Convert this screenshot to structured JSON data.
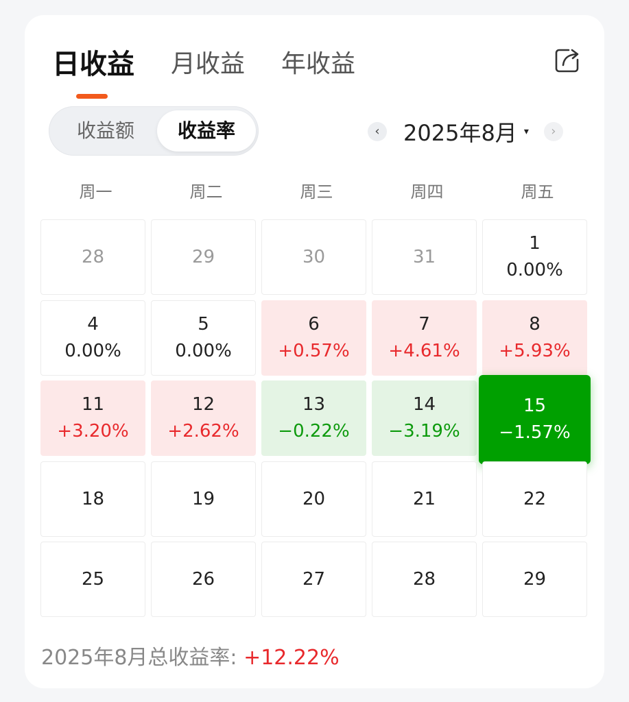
{
  "tabs": [
    {
      "label": "日收益",
      "active": true
    },
    {
      "label": "月收益",
      "active": false
    },
    {
      "label": "年收益",
      "active": false
    }
  ],
  "share_icon": "share-icon",
  "segment": {
    "amount_label": "收益额",
    "rate_label": "收益率",
    "selected": "收益率"
  },
  "month_nav": {
    "prev": "‹",
    "label": "2025年8月",
    "caret": "▾",
    "next": "›"
  },
  "weekdays": [
    "周一",
    "周二",
    "周三",
    "周四",
    "周五"
  ],
  "calendar": [
    [
      {
        "day": "28",
        "rate": "",
        "state": "muted"
      },
      {
        "day": "29",
        "rate": "",
        "state": "muted"
      },
      {
        "day": "30",
        "rate": "",
        "state": "muted"
      },
      {
        "day": "31",
        "rate": "",
        "state": "muted"
      },
      {
        "day": "1",
        "rate": "0.00%",
        "state": "flat"
      }
    ],
    [
      {
        "day": "4",
        "rate": "0.00%",
        "state": "flat"
      },
      {
        "day": "5",
        "rate": "0.00%",
        "state": "flat"
      },
      {
        "day": "6",
        "rate": "+0.57%",
        "state": "up"
      },
      {
        "day": "7",
        "rate": "+4.61%",
        "state": "up"
      },
      {
        "day": "8",
        "rate": "+5.93%",
        "state": "up"
      }
    ],
    [
      {
        "day": "11",
        "rate": "+3.20%",
        "state": "up"
      },
      {
        "day": "12",
        "rate": "+2.62%",
        "state": "up"
      },
      {
        "day": "13",
        "rate": "−0.22%",
        "state": "down"
      },
      {
        "day": "14",
        "rate": "−3.19%",
        "state": "down"
      },
      {
        "day": "15",
        "rate": "−1.57%",
        "state": "selected"
      }
    ],
    [
      {
        "day": "18",
        "rate": "",
        "state": "future"
      },
      {
        "day": "19",
        "rate": "",
        "state": "future"
      },
      {
        "day": "20",
        "rate": "",
        "state": "future"
      },
      {
        "day": "21",
        "rate": "",
        "state": "future"
      },
      {
        "day": "22",
        "rate": "",
        "state": "future"
      }
    ],
    [
      {
        "day": "25",
        "rate": "",
        "state": "future"
      },
      {
        "day": "26",
        "rate": "",
        "state": "future"
      },
      {
        "day": "27",
        "rate": "",
        "state": "future"
      },
      {
        "day": "28",
        "rate": "",
        "state": "future"
      },
      {
        "day": "29",
        "rate": "",
        "state": "future"
      }
    ]
  ],
  "summary": {
    "label": "2025年8月总收益率: ",
    "value": "+12.22%"
  },
  "colors": {
    "accent": "#f25a1c",
    "up": "#e8292c",
    "down": "#0d9a0d",
    "selected": "#00a000"
  }
}
